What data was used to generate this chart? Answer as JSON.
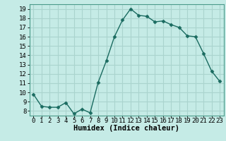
{
  "x": [
    0,
    1,
    2,
    3,
    4,
    5,
    6,
    7,
    8,
    9,
    10,
    11,
    12,
    13,
    14,
    15,
    16,
    17,
    18,
    19,
    20,
    21,
    22,
    23
  ],
  "y": [
    9.8,
    8.5,
    8.4,
    8.4,
    8.9,
    7.7,
    8.2,
    7.8,
    11.1,
    13.4,
    16.0,
    17.8,
    19.0,
    18.3,
    18.2,
    17.6,
    17.7,
    17.3,
    17.0,
    16.1,
    16.0,
    14.2,
    12.3,
    11.2
  ],
  "line_color": "#1a6b60",
  "marker": "D",
  "markersize": 2.5,
  "linewidth": 1.0,
  "bg_color": "#c5ebe6",
  "grid_color": "#aad4ce",
  "xlabel": "Humidex (Indice chaleur)",
  "xlabel_fontsize": 7.5,
  "tick_fontsize": 6.5,
  "ylim": [
    7.5,
    19.5
  ],
  "yticks": [
    8,
    9,
    10,
    11,
    12,
    13,
    14,
    15,
    16,
    17,
    18,
    19
  ],
  "xticks": [
    0,
    1,
    2,
    3,
    4,
    5,
    6,
    7,
    8,
    9,
    10,
    11,
    12,
    13,
    14,
    15,
    16,
    17,
    18,
    19,
    20,
    21,
    22,
    23
  ],
  "xlim": [
    -0.5,
    23.5
  ],
  "spine_color": "#4a9a8a"
}
